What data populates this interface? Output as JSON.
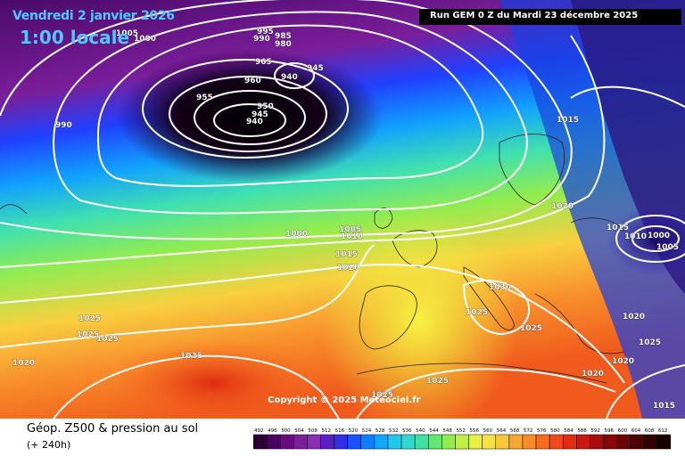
{
  "header": {
    "date": "Vendredi 2 janvier 2026",
    "time": "1:00 locale",
    "run": "Run GEM 0 Z du Mardi 23 décembre 2025"
  },
  "copyright": "Copyright © 2025 Meteociel.fr",
  "footer": {
    "title": "Géop. Z500 & pression au sol",
    "subtitle": "(+ 240h)"
  },
  "legend": {
    "ticks": [
      "492",
      "496",
      "500",
      "504",
      "508",
      "512",
      "516",
      "520",
      "524",
      "528",
      "532",
      "536",
      "540",
      "544",
      "548",
      "552",
      "556",
      "560",
      "564",
      "568",
      "572",
      "576",
      "580",
      "584",
      "588",
      "592",
      "596",
      "600",
      "604",
      "608",
      "612"
    ],
    "colors": [
      "#2a0033",
      "#4b0060",
      "#6a0a80",
      "#7d1e9a",
      "#8a2db0",
      "#5a20c8",
      "#3030e0",
      "#1a50ff",
      "#0a80ff",
      "#10a8ff",
      "#20c8f0",
      "#30d8d0",
      "#40e0a0",
      "#60e870",
      "#90ec50",
      "#c0f040",
      "#e8f040",
      "#f8e040",
      "#f8c838",
      "#f8a830",
      "#f88c28",
      "#f86c20",
      "#f04818",
      "#e02c10",
      "#c81810",
      "#a80c0c",
      "#880808",
      "#680606",
      "#4a0404",
      "#300202",
      "#180000"
    ]
  },
  "isobar_labels": [
    {
      "text": "1005"
    },
    {
      "text": "1000"
    },
    {
      "text": "995"
    },
    {
      "text": "990"
    },
    {
      "text": "985"
    },
    {
      "text": "980"
    },
    {
      "text": "965"
    },
    {
      "text": "945"
    },
    {
      "text": "960"
    },
    {
      "text": "940"
    },
    {
      "text": "955"
    },
    {
      "text": "950"
    },
    {
      "text": "945"
    },
    {
      "text": "940"
    },
    {
      "text": "990"
    },
    {
      "text": "1015"
    },
    {
      "text": "1020"
    },
    {
      "text": "1000"
    },
    {
      "text": "1005"
    },
    {
      "text": "1010"
    },
    {
      "text": "1015"
    },
    {
      "text": "1020"
    },
    {
      "text": "1015"
    },
    {
      "text": "1010"
    },
    {
      "text": "1000"
    },
    {
      "text": "1005"
    },
    {
      "text": "1030"
    },
    {
      "text": "1025"
    },
    {
      "text": "1025"
    },
    {
      "text": "1025"
    },
    {
      "text": "1025"
    },
    {
      "text": "1025"
    },
    {
      "text": "1020"
    },
    {
      "text": "1025"
    },
    {
      "text": "1025"
    },
    {
      "text": "1020"
    },
    {
      "text": "1020"
    },
    {
      "text": "1025"
    },
    {
      "text": "1020"
    },
    {
      "text": "1025"
    },
    {
      "text": "1015"
    }
  ]
}
